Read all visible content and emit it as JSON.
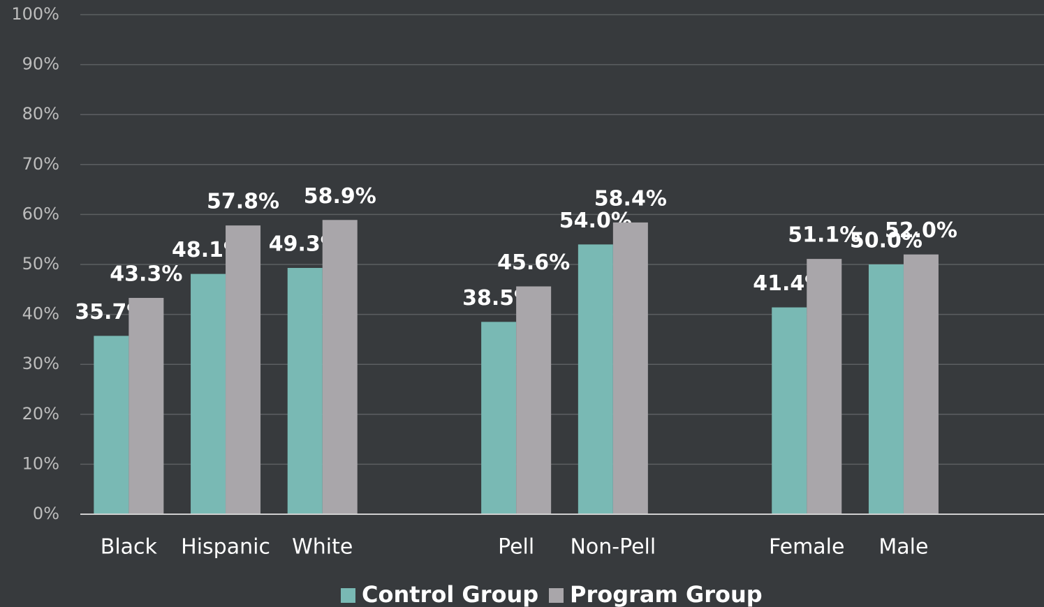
{
  "chart_data": {
    "type": "bar",
    "categories": [
      "Black",
      "Hispanic",
      "White",
      null,
      "Pell",
      "Non-Pell",
      null,
      "Female",
      "Male"
    ],
    "series": [
      {
        "name": "Control Group",
        "color": "#79b9b4",
        "values": [
          35.7,
          48.1,
          49.3,
          null,
          38.5,
          54.0,
          null,
          41.4,
          50.0
        ],
        "value_labels": [
          "35.7%",
          "48.1%",
          "49.3%",
          null,
          "38.5%",
          "54.0%",
          null,
          "41.4%",
          "50.0%"
        ]
      },
      {
        "name": "Program Group",
        "color": "#a9a6aa",
        "values": [
          43.3,
          57.8,
          58.9,
          null,
          45.6,
          58.4,
          null,
          51.1,
          52.0
        ],
        "value_labels": [
          "43.3%",
          "57.8%",
          "58.9%",
          null,
          "45.6%",
          "58.4%",
          null,
          "51.1%",
          "52.0%"
        ]
      }
    ],
    "ylim": [
      0,
      100
    ],
    "yticks": [
      {
        "value": 0,
        "label": "0%"
      },
      {
        "value": 10,
        "label": "10%"
      },
      {
        "value": 20,
        "label": "20%"
      },
      {
        "value": 30,
        "label": "30%"
      },
      {
        "value": 40,
        "label": "40%"
      },
      {
        "value": 50,
        "label": "50%"
      },
      {
        "value": 60,
        "label": "60%"
      },
      {
        "value": 70,
        "label": "70%"
      },
      {
        "value": 80,
        "label": "80%"
      },
      {
        "value": 90,
        "label": "90%"
      },
      {
        "value": 100,
        "label": "100%"
      }
    ],
    "grid": true,
    "legend": "bottom"
  }
}
